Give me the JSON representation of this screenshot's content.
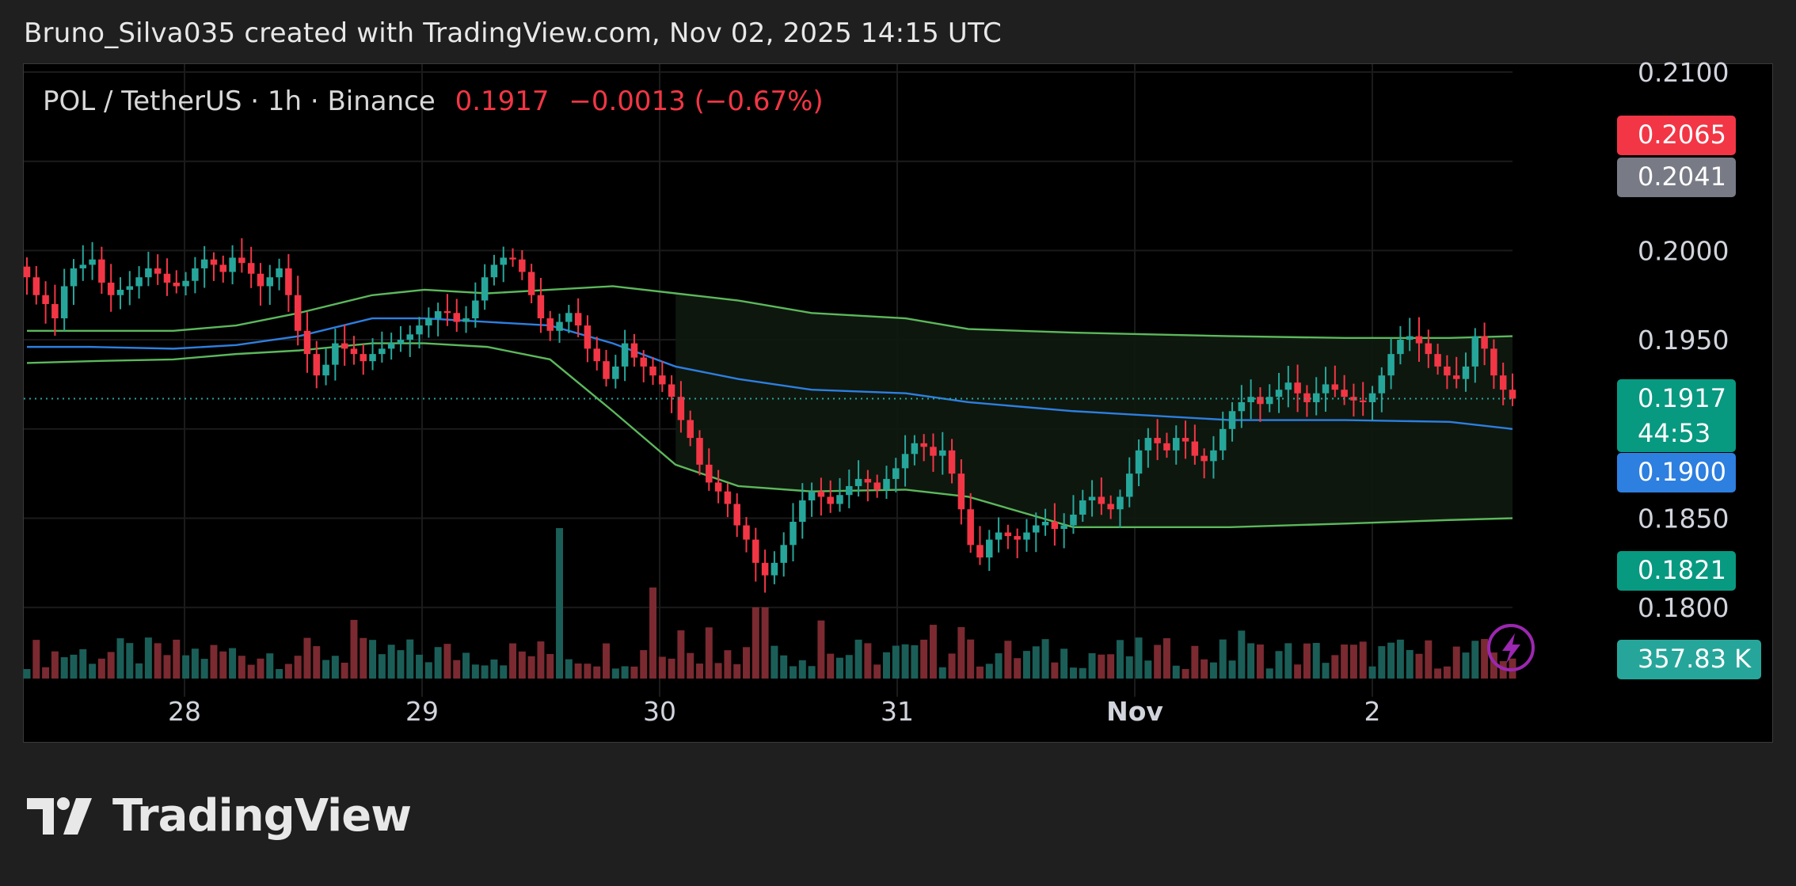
{
  "header": {
    "attribution": "Bruno_Silva035 created with TradingView.com, Nov 02, 2025 14:15 UTC"
  },
  "legend": {
    "symbol": "POL / TetherUS · 1h · Binance",
    "last": "0.1917",
    "change": "−0.0013 (−0.67%)"
  },
  "price_tags": {
    "red": "0.2065",
    "gray": "0.2041",
    "last": "0.1917",
    "countdown": "44:53",
    "ma": "0.1900",
    "low_band": "0.1821",
    "volume": "357.83 K"
  },
  "brand": {
    "name": "TradingView"
  },
  "colors": {
    "up": "#26a69a",
    "down": "#f23645",
    "band": "#5cb85c",
    "ma": "#2d7fe0",
    "vol_up": "#1b5e58",
    "vol_down": "#7a2a30"
  },
  "chart_data": {
    "type": "candlestick",
    "interval": "1h",
    "x_tick_labels": [
      "28",
      "29",
      "30",
      "31",
      "Nov",
      "2"
    ],
    "y_tick_labels": [
      "0.2100",
      "0.2000",
      "0.1950",
      "0.1850",
      "0.1800"
    ],
    "ylim": [
      0.178,
      0.2102
    ],
    "grid": true,
    "series": [
      {
        "name": "price",
        "kind": "candles",
        "close_path": [
          0.1985,
          0.1975,
          0.197,
          0.1962,
          0.198,
          0.199,
          0.1992,
          0.1995,
          0.1982,
          0.1975,
          0.1978,
          0.198,
          0.1985,
          0.199,
          0.1987,
          0.1982,
          0.198,
          0.1983,
          0.199,
          0.1995,
          0.1992,
          0.1988,
          0.1996,
          0.1993,
          0.1987,
          0.198,
          0.1985,
          0.199,
          0.1975,
          0.1955,
          0.1942,
          0.193,
          0.1936,
          0.1948,
          0.1945,
          0.1942,
          0.1938,
          0.1942,
          0.1945,
          0.1948,
          0.195,
          0.1953,
          0.1958,
          0.1962,
          0.1966,
          0.1965,
          0.196,
          0.1962,
          0.1972,
          0.1985,
          0.1992,
          0.1996,
          0.1995,
          0.1988,
          0.1975,
          0.1962,
          0.1955,
          0.196,
          0.1965,
          0.1958,
          0.1945,
          0.1938,
          0.1928,
          0.1935,
          0.1948,
          0.194,
          0.1935,
          0.193,
          0.1925,
          0.1918,
          0.1905,
          0.1895,
          0.188,
          0.187,
          0.1865,
          0.1858,
          0.1846,
          0.1838,
          0.1825,
          0.1818,
          0.1825,
          0.1835,
          0.1848,
          0.186,
          0.1865,
          0.1862,
          0.1858,
          0.1863,
          0.1868,
          0.1872,
          0.187,
          0.1866,
          0.1872,
          0.1878,
          0.1886,
          0.1892,
          0.189,
          0.1885,
          0.1888,
          0.1875,
          0.1855,
          0.1835,
          0.1828,
          0.1838,
          0.1842,
          0.184,
          0.1838,
          0.1842,
          0.1846,
          0.1848,
          0.1844,
          0.1846,
          0.1852,
          0.186,
          0.1862,
          0.1858,
          0.1855,
          0.1862,
          0.1875,
          0.1888,
          0.1895,
          0.1892,
          0.1888,
          0.1895,
          0.1893,
          0.1885,
          0.1882,
          0.1888,
          0.19,
          0.191,
          0.1915,
          0.1918,
          0.1914,
          0.1918,
          0.1922,
          0.1926,
          0.192,
          0.1915,
          0.192,
          0.1925,
          0.1922,
          0.1918,
          0.1916,
          0.1915,
          0.192,
          0.193,
          0.1942,
          0.195,
          0.1952,
          0.1948,
          0.1942,
          0.1935,
          0.193,
          0.1928,
          0.1935,
          0.1952,
          0.1945,
          0.193,
          0.1922,
          0.1917
        ]
      },
      {
        "name": "upper band",
        "kind": "line",
        "points": [
          [
            0,
            0.1955
          ],
          [
            6,
            0.1955
          ],
          [
            14,
            0.1955
          ],
          [
            20,
            0.1958
          ],
          [
            26,
            0.1965
          ],
          [
            33,
            0.1975
          ],
          [
            38,
            0.1978
          ],
          [
            44,
            0.1976
          ],
          [
            50,
            0.1978
          ],
          [
            56,
            0.198
          ],
          [
            62,
            0.1976
          ],
          [
            68,
            0.1972
          ],
          [
            75,
            0.1965
          ],
          [
            84,
            0.1962
          ],
          [
            90,
            0.1956
          ],
          [
            100,
            0.1954
          ],
          [
            115,
            0.1952
          ],
          [
            126,
            0.1951
          ],
          [
            136,
            0.1951
          ],
          [
            142,
            0.1952
          ]
        ]
      },
      {
        "name": "basis",
        "kind": "line",
        "points": [
          [
            0,
            0.1946
          ],
          [
            6,
            0.1946
          ],
          [
            14,
            0.1945
          ],
          [
            20,
            0.1947
          ],
          [
            26,
            0.1952
          ],
          [
            33,
            0.1962
          ],
          [
            38,
            0.1962
          ],
          [
            44,
            0.196
          ],
          [
            50,
            0.1958
          ],
          [
            56,
            0.1948
          ],
          [
            62,
            0.1935
          ],
          [
            68,
            0.1928
          ],
          [
            75,
            0.1922
          ],
          [
            84,
            0.192
          ],
          [
            90,
            0.1915
          ],
          [
            100,
            0.191
          ],
          [
            115,
            0.1905
          ],
          [
            126,
            0.1905
          ],
          [
            136,
            0.1904
          ],
          [
            142,
            0.19
          ]
        ]
      },
      {
        "name": "lower band",
        "kind": "line",
        "points": [
          [
            0,
            0.1937
          ],
          [
            6,
            0.1938
          ],
          [
            14,
            0.1939
          ],
          [
            20,
            0.1942
          ],
          [
            26,
            0.1944
          ],
          [
            33,
            0.1948
          ],
          [
            38,
            0.1948
          ],
          [
            44,
            0.1946
          ],
          [
            50,
            0.1939
          ],
          [
            56,
            0.191
          ],
          [
            62,
            0.188
          ],
          [
            68,
            0.1868
          ],
          [
            75,
            0.1865
          ],
          [
            84,
            0.1866
          ],
          [
            90,
            0.1862
          ],
          [
            100,
            0.1845
          ],
          [
            115,
            0.1845
          ],
          [
            126,
            0.1847
          ],
          [
            136,
            0.1849
          ],
          [
            142,
            0.185
          ]
        ]
      }
    ]
  }
}
